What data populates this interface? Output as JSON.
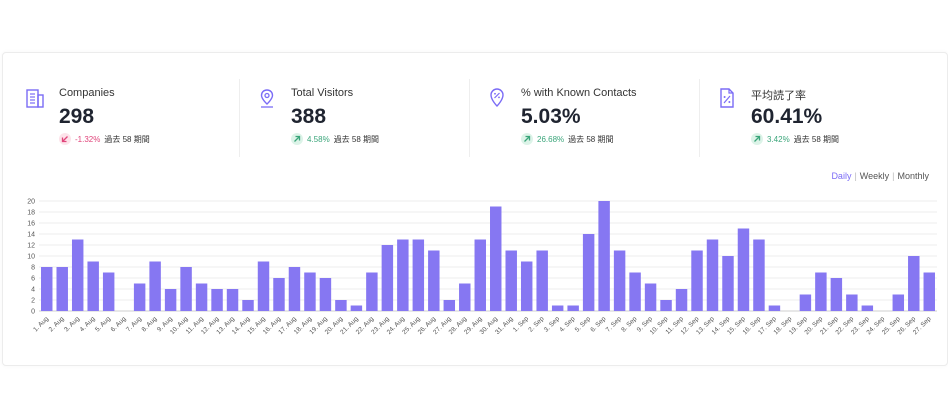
{
  "kpis": [
    {
      "label": "Companies",
      "value": "298",
      "change": "-1.32%",
      "direction": "down",
      "period": "過去 58 期間",
      "icon": "building-icon"
    },
    {
      "label": "Total Visitors",
      "value": "388",
      "change": "4.58%",
      "direction": "up",
      "period": "過去 58 期間",
      "icon": "location-pin-icon"
    },
    {
      "label": "% with Known Contacts",
      "value": "5.03%",
      "change": "26.68%",
      "direction": "up",
      "period": "過去 58 期間",
      "icon": "percent-shield-icon"
    },
    {
      "label": "平均読了率",
      "value": "60.41%",
      "change": "3.42%",
      "direction": "up",
      "period": "過去 58 期間",
      "icon": "document-percent-icon"
    }
  ],
  "tabs": {
    "daily": "Daily",
    "weekly": "Weekly",
    "monthly": "Monthly",
    "active": "daily"
  },
  "colors": {
    "bar": "#8677f2",
    "accent": "#7b6cf6",
    "down": "#e0457b",
    "down_bg": "#fde3ea",
    "up": "#3aa57a",
    "up_bg": "#dcf3e8"
  },
  "chart_data": {
    "type": "bar",
    "ylim": [
      0,
      20
    ],
    "yticks": [
      0,
      2,
      4,
      6,
      8,
      10,
      12,
      14,
      16,
      18,
      20
    ],
    "grid": true,
    "categories": [
      "1. Aug",
      "2. Aug",
      "3. Aug",
      "4. Aug",
      "5. Aug",
      "6. Aug",
      "7. Aug",
      "8. Aug",
      "9. Aug",
      "10. Aug",
      "11. Aug",
      "12. Aug",
      "13. Aug",
      "14. Aug",
      "15. Aug",
      "16. Aug",
      "17. Aug",
      "18. Aug",
      "19. Aug",
      "20. Aug",
      "21. Aug",
      "22. Aug",
      "23. Aug",
      "24. Aug",
      "25. Aug",
      "26. Aug",
      "27. Aug",
      "28. Aug",
      "29. Aug",
      "30. Aug",
      "31. Aug",
      "1. Sep",
      "2. Sep",
      "3. Sep",
      "4. Sep",
      "5. Sep",
      "6. Sep",
      "7. Sep",
      "8. Sep",
      "9. Sep",
      "10. Sep",
      "11. Sep",
      "12. Sep",
      "13. Sep",
      "14. Sep",
      "15. Sep",
      "16. Sep",
      "17. Sep",
      "18. Sep",
      "19. Sep",
      "20. Sep",
      "21. Sep",
      "22. Sep",
      "23. Sep",
      "24. Sep",
      "25. Sep",
      "26. Sep",
      "27. Sep"
    ],
    "values": [
      8,
      8,
      13,
      9,
      7,
      0,
      5,
      9,
      4,
      8,
      5,
      4,
      4,
      2,
      9,
      6,
      8,
      7,
      6,
      2,
      1,
      7,
      12,
      13,
      13,
      11,
      2,
      5,
      13,
      19,
      11,
      9,
      11,
      1,
      1,
      14,
      20,
      11,
      7,
      5,
      2,
      4,
      11,
      13,
      10,
      15,
      13,
      1,
      0,
      3,
      7,
      6,
      3,
      1,
      0,
      3,
      10,
      7
    ]
  }
}
